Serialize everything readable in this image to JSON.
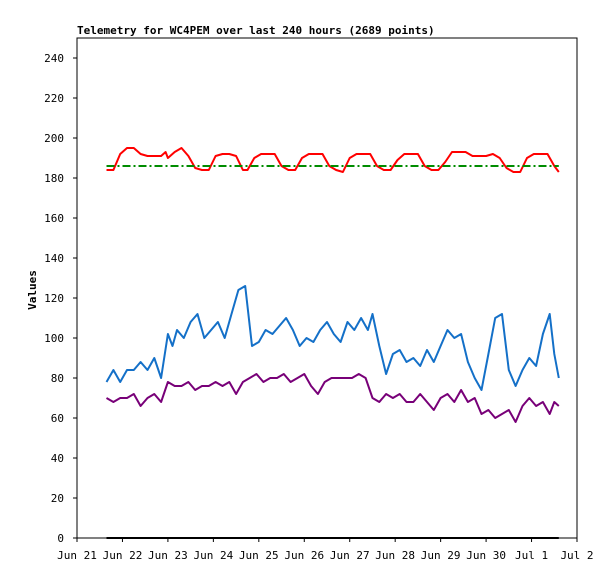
{
  "chart_data": {
    "type": "line",
    "title": "Telemetry for WC4PEM over last 240 hours (2689 points)",
    "xlabel": "",
    "ylabel": "Values",
    "ylim": [
      0,
      250
    ],
    "xlim": [
      0,
      11
    ],
    "grid": false,
    "legend": "none",
    "y_ticks": [
      0,
      20,
      40,
      60,
      80,
      100,
      120,
      140,
      160,
      180,
      200,
      220,
      240
    ],
    "x_ticks": [
      {
        "x": 0,
        "label": "Jun 21"
      },
      {
        "x": 1,
        "label": "Jun 22"
      },
      {
        "x": 2,
        "label": "Jun 23"
      },
      {
        "x": 3,
        "label": "Jun 24"
      },
      {
        "x": 4,
        "label": "Jun 25"
      },
      {
        "x": 5,
        "label": "Jun 26"
      },
      {
        "x": 6,
        "label": "Jun 27"
      },
      {
        "x": 7,
        "label": "Jun 28"
      },
      {
        "x": 8,
        "label": "Jun 29"
      },
      {
        "x": 9,
        "label": "Jun 30"
      },
      {
        "x": 10,
        "label": "Jul 1"
      },
      {
        "x": 11,
        "label": "Jul 2"
      }
    ],
    "series": [
      {
        "color": "#ff0000",
        "x": [
          0.65,
          0.8,
          0.95,
          1.1,
          1.25,
          1.4,
          1.55,
          1.7,
          1.85,
          1.95,
          2.0,
          2.15,
          2.3,
          2.45,
          2.6,
          2.75,
          2.9,
          3.05,
          3.2,
          3.35,
          3.5,
          3.65,
          3.75,
          3.9,
          4.05,
          4.2,
          4.35,
          4.5,
          4.65,
          4.8,
          4.95,
          5.1,
          5.25,
          5.4,
          5.55,
          5.7,
          5.85,
          6.0,
          6.15,
          6.3,
          6.45,
          6.6,
          6.75,
          6.9,
          7.05,
          7.2,
          7.35,
          7.5,
          7.65,
          7.8,
          7.95,
          8.1,
          8.25,
          8.4,
          8.55,
          8.7,
          8.85,
          9.0,
          9.15,
          9.3,
          9.45,
          9.6,
          9.75,
          9.9,
          10.05,
          10.2,
          10.35,
          10.5,
          10.6
        ],
        "values": [
          184,
          184,
          192,
          195,
          195,
          192,
          191,
          191,
          191,
          193,
          190,
          193,
          195,
          191,
          185,
          184,
          184,
          191,
          192,
          192,
          191,
          184,
          184,
          190,
          192,
          192,
          192,
          186,
          184,
          184,
          190,
          192,
          192,
          192,
          186,
          184,
          183,
          190,
          192,
          192,
          192,
          186,
          184,
          184,
          189,
          192,
          192,
          192,
          186,
          184,
          184,
          188,
          193,
          193,
          193,
          191,
          191,
          191,
          192,
          190,
          185,
          183,
          183,
          190,
          192,
          192,
          192,
          186,
          183
        ]
      },
      {
        "color": "#008c00",
        "dashed": true,
        "x": [
          0.65,
          10.6
        ],
        "values": [
          186,
          186
        ]
      },
      {
        "color": "#1470c8",
        "x": [
          0.65,
          0.8,
          0.95,
          1.1,
          1.25,
          1.4,
          1.55,
          1.7,
          1.85,
          2.0,
          2.1,
          2.2,
          2.35,
          2.5,
          2.65,
          2.8,
          2.95,
          3.1,
          3.25,
          3.4,
          3.55,
          3.7,
          3.85,
          4.0,
          4.15,
          4.3,
          4.45,
          4.6,
          4.75,
          4.9,
          5.05,
          5.2,
          5.35,
          5.5,
          5.65,
          5.8,
          5.95,
          6.1,
          6.25,
          6.4,
          6.5,
          6.65,
          6.8,
          6.95,
          7.1,
          7.25,
          7.4,
          7.55,
          7.7,
          7.85,
          8.0,
          8.15,
          8.3,
          8.45,
          8.6,
          8.75,
          8.9,
          9.05,
          9.2,
          9.35,
          9.5,
          9.65,
          9.8,
          9.95,
          10.1,
          10.25,
          10.4,
          10.5,
          10.6
        ],
        "values": [
          78,
          84,
          78,
          84,
          84,
          88,
          84,
          90,
          80,
          102,
          96,
          104,
          100,
          108,
          112,
          100,
          104,
          108,
          100,
          112,
          124,
          126,
          96,
          98,
          104,
          102,
          106,
          110,
          104,
          96,
          100,
          98,
          104,
          108,
          102,
          98,
          108,
          104,
          110,
          104,
          112,
          96,
          82,
          92,
          94,
          88,
          90,
          86,
          94,
          88,
          96,
          104,
          100,
          102,
          88,
          80,
          74,
          92,
          110,
          112,
          84,
          76,
          84,
          90,
          86,
          102,
          112,
          92,
          80
        ]
      },
      {
        "color": "#780078",
        "x": [
          0.65,
          0.8,
          0.95,
          1.1,
          1.25,
          1.4,
          1.55,
          1.7,
          1.85,
          2.0,
          2.15,
          2.3,
          2.45,
          2.6,
          2.75,
          2.9,
          3.05,
          3.2,
          3.35,
          3.5,
          3.65,
          3.8,
          3.95,
          4.1,
          4.25,
          4.4,
          4.55,
          4.7,
          4.85,
          5.0,
          5.15,
          5.3,
          5.45,
          5.6,
          5.75,
          5.9,
          6.05,
          6.2,
          6.35,
          6.5,
          6.65,
          6.8,
          6.95,
          7.1,
          7.25,
          7.4,
          7.55,
          7.7,
          7.85,
          8.0,
          8.15,
          8.3,
          8.45,
          8.6,
          8.75,
          8.9,
          9.05,
          9.2,
          9.35,
          9.5,
          9.65,
          9.8,
          9.95,
          10.1,
          10.25,
          10.4,
          10.5,
          10.6
        ],
        "values": [
          70,
          68,
          70,
          70,
          72,
          66,
          70,
          72,
          68,
          78,
          76,
          76,
          78,
          74,
          76,
          76,
          78,
          76,
          78,
          72,
          78,
          80,
          82,
          78,
          80,
          80,
          82,
          78,
          80,
          82,
          76,
          72,
          78,
          80,
          80,
          80,
          80,
          82,
          80,
          70,
          68,
          72,
          70,
          72,
          68,
          68,
          72,
          68,
          64,
          70,
          72,
          68,
          74,
          68,
          70,
          62,
          64,
          60,
          62,
          64,
          58,
          66,
          70,
          66,
          68,
          62,
          68,
          66
        ]
      },
      {
        "color": "#000000",
        "x": [
          0.65,
          10.6
        ],
        "values": [
          0,
          0
        ]
      }
    ]
  }
}
